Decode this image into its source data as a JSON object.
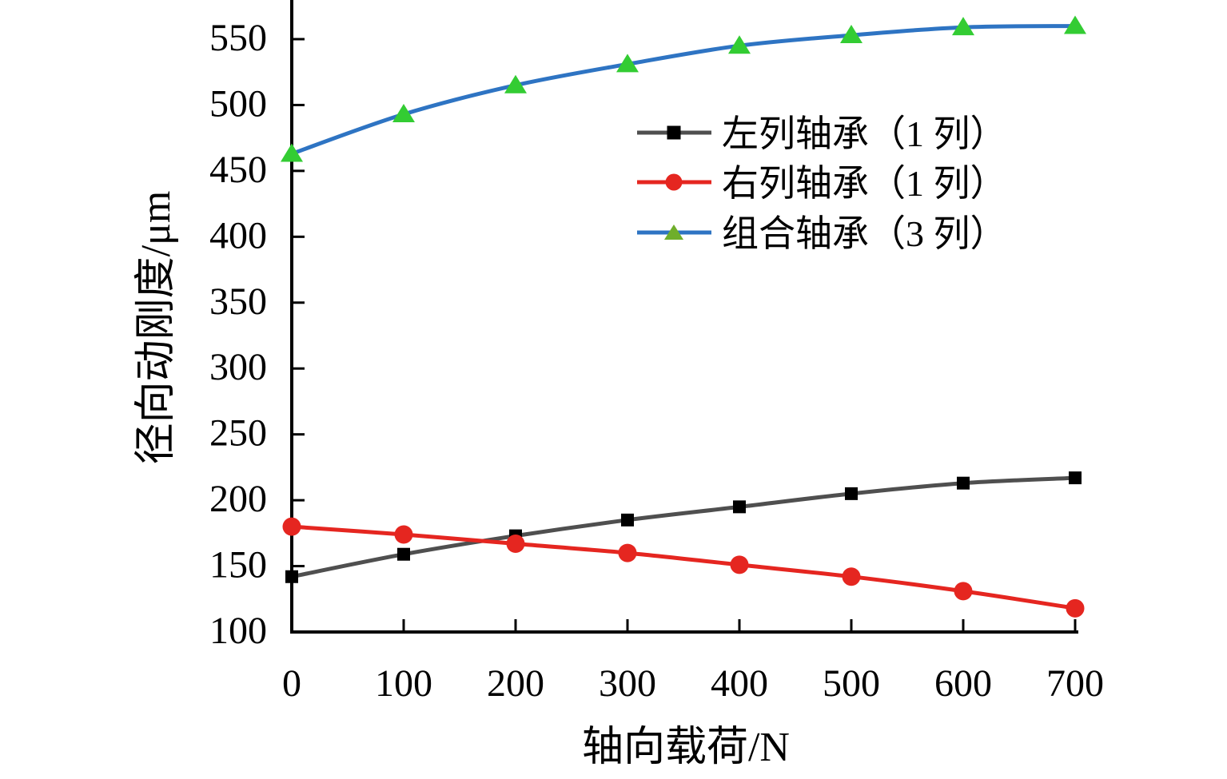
{
  "chart_data": {
    "type": "line",
    "x": [
      0,
      100,
      200,
      300,
      400,
      500,
      600,
      700
    ],
    "series": [
      {
        "name": "左列轴承（1 列）",
        "values": [
          142,
          159,
          173,
          185,
          195,
          205,
          213,
          217
        ],
        "line_color": "#4f4f4f",
        "marker": "square",
        "marker_color": "#000000",
        "legend_marker_color": "#000000"
      },
      {
        "name": "右列轴承（1 列）",
        "values": [
          180,
          174,
          167,
          160,
          151,
          142,
          131,
          118
        ],
        "line_color": "#e52620",
        "marker": "circle",
        "marker_color": "#e52620",
        "legend_marker_color": "#e52620"
      },
      {
        "name": "组合轴承（3 列）",
        "values": [
          463,
          493,
          515,
          531,
          545,
          553,
          559,
          560
        ],
        "line_color": "#2e74c3",
        "marker": "triangle",
        "marker_color": "#33cc33",
        "legend_marker_color": "#6fae2b"
      }
    ],
    "xlabel": "轴向载荷/N",
    "ylabel": "径向动刚度/μm",
    "x_ticks": [
      "0",
      "100",
      "200",
      "300",
      "400",
      "500",
      "600",
      "700"
    ],
    "y_ticks": [
      "100",
      "150",
      "200",
      "250",
      "300",
      "350",
      "400",
      "450",
      "500",
      "550"
    ],
    "xlim": [
      0,
      700
    ],
    "ylim": [
      100,
      580
    ],
    "grid": false,
    "legend_position": "upper-right-inside",
    "axis_color": "#000000",
    "background_color": "#ffffff"
  }
}
